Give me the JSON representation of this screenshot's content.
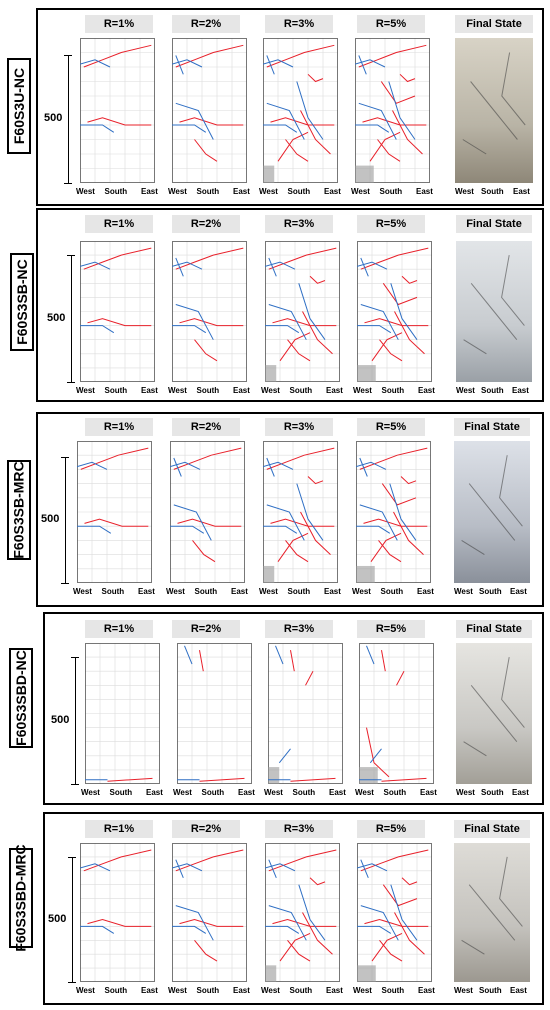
{
  "stage_labels": [
    "R=1%",
    "R=2%",
    "R=3%",
    "R=5%"
  ],
  "final_label": "Final State",
  "dimension_label": "500",
  "axis_labels": {
    "west": "West",
    "south": "South",
    "east": "East"
  },
  "specimens": [
    {
      "name": "F60S3U-NC"
    },
    {
      "name": "F60S3SB-NC"
    },
    {
      "name": "F60S3SB-MRC"
    },
    {
      "name": "F60S3SBD-NC"
    },
    {
      "name": "F60S3SBD-MRC"
    }
  ],
  "colors": {
    "crack_red": "#e8202a",
    "crack_blue": "#2f6fc4",
    "grid": "#dcdcdc",
    "damage": "#9a9a9a"
  }
}
